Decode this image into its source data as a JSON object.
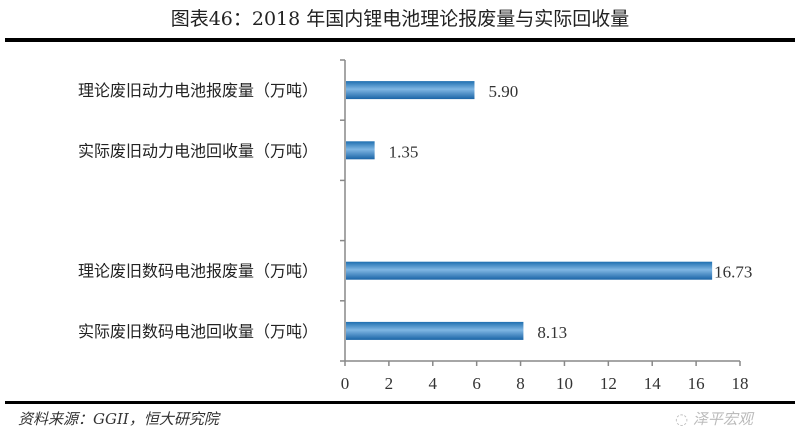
{
  "chart_data": {
    "type": "bar",
    "orientation": "horizontal",
    "title": "图表46：2018 年国内锂电池理论报废量与实际回收量",
    "categories": [
      "理论废旧动力电池报废量（万吨）",
      "实际废旧动力电池回收量（万吨）",
      "",
      "理论废旧数码电池报废量（万吨）",
      "实际废旧数码电池回收量（万吨）"
    ],
    "values": [
      5.9,
      1.35,
      null,
      16.73,
      8.13
    ],
    "value_labels": [
      "5.90",
      "1.35",
      "",
      "16.73",
      "8.13"
    ],
    "xlim": [
      0,
      18
    ],
    "xticks": [
      "0",
      "2",
      "4",
      "6",
      "8",
      "10",
      "12",
      "14",
      "16",
      "18"
    ],
    "grid": false,
    "bar_color": "#2e7fc0"
  },
  "source": "资料来源：GGII，恒大研究院",
  "watermark": "泽平宏观"
}
